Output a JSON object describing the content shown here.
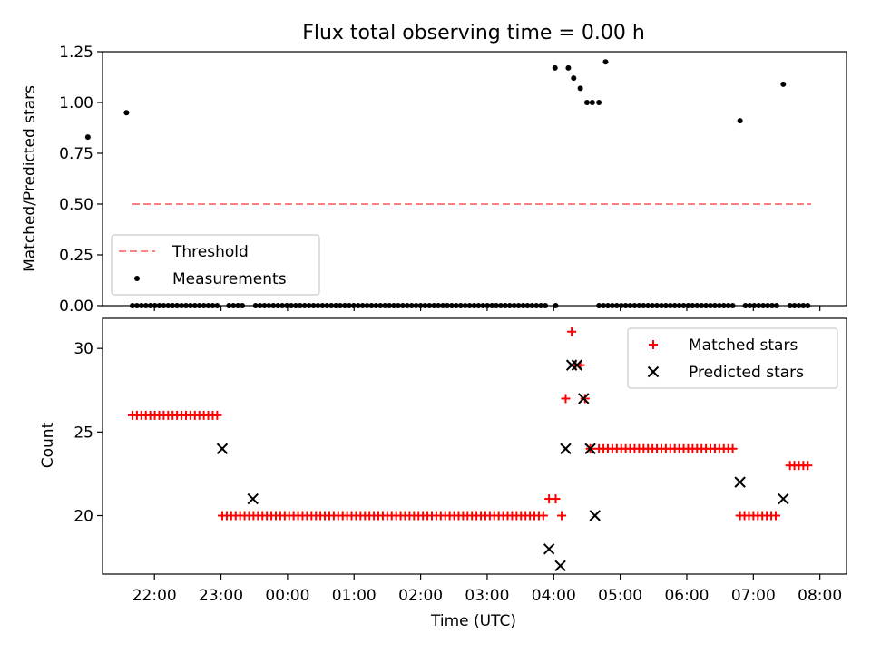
{
  "chart_data": [
    {
      "type": "scatter",
      "title": "Flux total observing time = 0.00 h",
      "xlabel": "",
      "ylabel": "Matched/Predicted stars",
      "ylim": [
        0,
        1.25
      ],
      "yticks": [
        "0.00",
        "0.25",
        "0.50",
        "0.75",
        "1.00",
        "1.25"
      ],
      "x_unit": "hours after 00:00 UTC (negative = previous evening)",
      "threshold": {
        "name": "Threshold",
        "value": 0.5,
        "x_range": [
          -2.33,
          7.87
        ],
        "color": "#ff8080",
        "style": "dashed"
      },
      "legend": {
        "position": "lower-left",
        "entries": [
          "Threshold",
          "Measurements"
        ]
      },
      "series": [
        {
          "name": "Measurements",
          "color": "#000000",
          "points": [
            [
              -3.0,
              0.83
            ],
            [
              -2.42,
              0.95
            ],
            [
              4.02,
              1.17
            ],
            [
              4.22,
              1.17
            ],
            [
              4.3,
              1.12
            ],
            [
              4.4,
              1.07
            ],
            [
              4.5,
              1.0
            ],
            [
              4.58,
              1.0
            ],
            [
              4.68,
              1.0
            ],
            [
              4.78,
              1.2
            ],
            [
              6.8,
              0.91
            ],
            [
              7.45,
              1.09
            ]
          ],
          "zero_runs": [
            {
              "from": -2.33,
              "to": -1.04,
              "step": 0.067
            },
            {
              "from": -0.88,
              "to": -0.63,
              "step": 0.067
            },
            {
              "from": -0.48,
              "to": 3.88,
              "step": 0.067
            },
            {
              "from": 4.03,
              "to": 4.03,
              "step": 0.067
            },
            {
              "from": 4.68,
              "to": 6.7,
              "step": 0.067
            },
            {
              "from": 6.88,
              "to": 7.38,
              "step": 0.067
            },
            {
              "from": 7.55,
              "to": 7.87,
              "step": 0.067
            }
          ]
        }
      ]
    },
    {
      "type": "scatter",
      "title": "",
      "xlabel": "Time (UTC)",
      "ylabel": "Count",
      "ylim": [
        16.5,
        31.8
      ],
      "yticks": [
        "20",
        "25",
        "30"
      ],
      "xticks": [
        "22:00",
        "23:00",
        "00:00",
        "01:00",
        "02:00",
        "03:00",
        "04:00",
        "05:00",
        "06:00",
        "07:00",
        "08:00"
      ],
      "xlim_hours": [
        -2.78,
        8.4
      ],
      "legend": {
        "position": "top-right",
        "entries": [
          "Matched stars",
          "Predicted stars"
        ]
      },
      "series": [
        {
          "name": "Matched stars",
          "color": "#ff0000",
          "marker": "plus",
          "runs": [
            {
              "from": -2.33,
              "to": -1.04,
              "step": 0.067,
              "y": 26
            },
            {
              "from": -0.98,
              "to": 3.88,
              "step": 0.067,
              "y": 20
            },
            {
              "from": 6.8,
              "to": 7.38,
              "step": 0.067,
              "y": 20
            },
            {
              "from": 4.68,
              "to": 6.7,
              "step": 0.067,
              "y": 24
            },
            {
              "from": 7.55,
              "to": 7.87,
              "step": 0.067,
              "y": 23
            }
          ],
          "points": [
            [
              3.93,
              21
            ],
            [
              4.03,
              21
            ],
            [
              4.12,
              20
            ],
            [
              4.18,
              27
            ],
            [
              4.27,
              31
            ],
            [
              4.33,
              29
            ],
            [
              4.4,
              29
            ],
            [
              4.47,
              27
            ],
            [
              4.55,
              24
            ]
          ]
        },
        {
          "name": "Predicted stars",
          "color": "#000000",
          "marker": "x",
          "points": [
            [
              -0.98,
              24
            ],
            [
              -0.52,
              21
            ],
            [
              3.93,
              18
            ],
            [
              4.1,
              17
            ],
            [
              4.18,
              24
            ],
            [
              4.27,
              29
            ],
            [
              4.35,
              29
            ],
            [
              4.45,
              27
            ],
            [
              4.55,
              24
            ],
            [
              4.62,
              20
            ],
            [
              6.8,
              22
            ],
            [
              7.45,
              21
            ]
          ]
        }
      ]
    }
  ]
}
